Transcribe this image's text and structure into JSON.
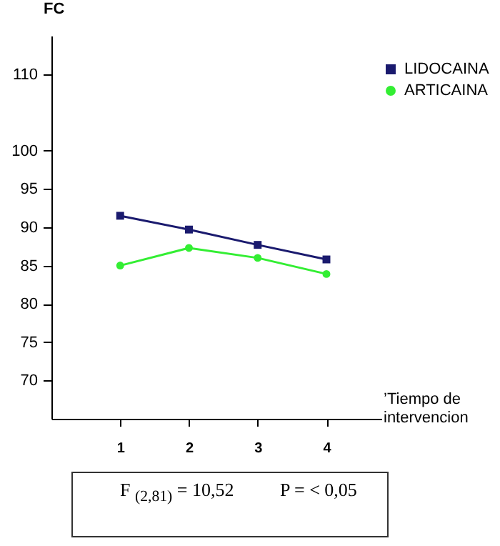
{
  "chart_data": {
    "type": "line",
    "xlabel": "’Tiempo de intervencion",
    "ylabel": "FC",
    "x": [
      1,
      2,
      3,
      4
    ],
    "xlim": [
      0,
      4.8
    ],
    "xticks": [
      1,
      2,
      3,
      4
    ],
    "ylim": [
      65,
      115
    ],
    "yticks": [
      70,
      75,
      80,
      85,
      90,
      95,
      100,
      110
    ],
    "grid": false,
    "legend": "top right",
    "line_style": "solid",
    "series": [
      {
        "name": "LIDOCAINA",
        "color": "#1a1a6e",
        "marker": "square",
        "values": [
          91.5,
          89.7,
          87.7,
          85.8
        ]
      },
      {
        "name": "ARTICAINA",
        "color": "#33ee33",
        "marker": "circle",
        "values": [
          85.0,
          87.3,
          86.0,
          83.9
        ]
      }
    ],
    "annotations": [
      "F $_{(2,81)}$ = 10,52",
      "P = < 0,05"
    ]
  }
}
